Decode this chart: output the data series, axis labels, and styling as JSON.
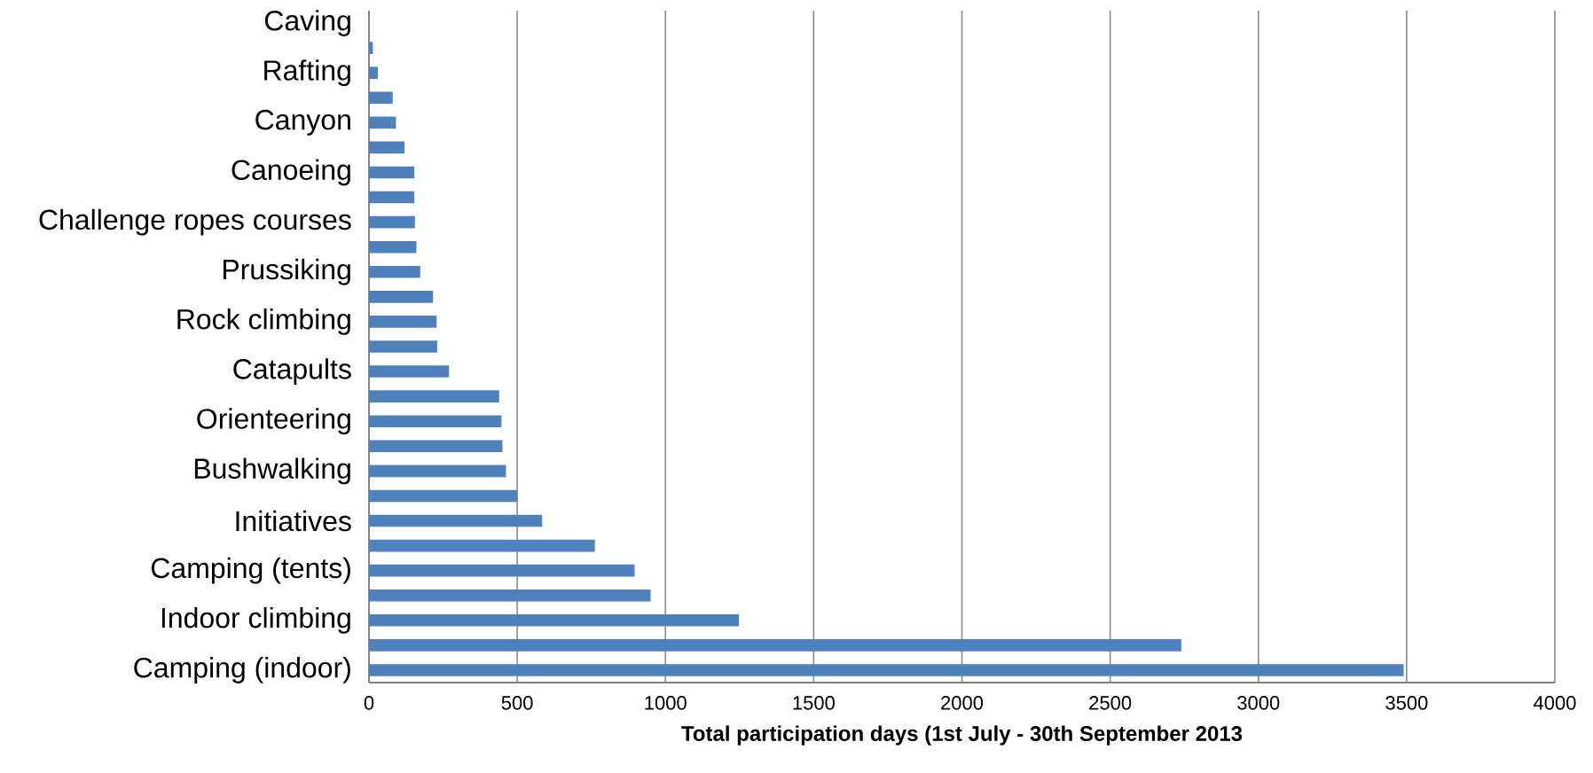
{
  "chart_data": {
    "type": "bar",
    "orientation": "horizontal",
    "xlabel": "Total participation days (1st July - 30th September 2013",
    "categories": [
      "Caving",
      null,
      "Rafting",
      null,
      "Canyon",
      null,
      "Canoeing",
      null,
      "Challenge ropes courses",
      null,
      "Prussiking",
      null,
      "Rock climbing",
      null,
      "Catapults",
      null,
      "Orienteering",
      null,
      "Bushwalking",
      null,
      "Initiatives",
      null,
      "Camping (tents)",
      null,
      "Indoor climbing",
      null,
      "Camping (indoor)"
    ],
    "values": [
      0,
      13,
      30,
      80,
      91,
      120,
      153,
      153,
      155,
      160,
      173,
      216,
      228,
      230,
      270,
      439,
      447,
      450,
      462,
      500,
      584,
      762,
      896,
      950,
      1248,
      2740,
      3490
    ],
    "color": "#4f81bd",
    "xlim": [
      0,
      4000
    ],
    "xticks": [
      0,
      500,
      1000,
      1500,
      2000,
      2500,
      3000,
      3500,
      4000
    ],
    "grid": "x"
  }
}
